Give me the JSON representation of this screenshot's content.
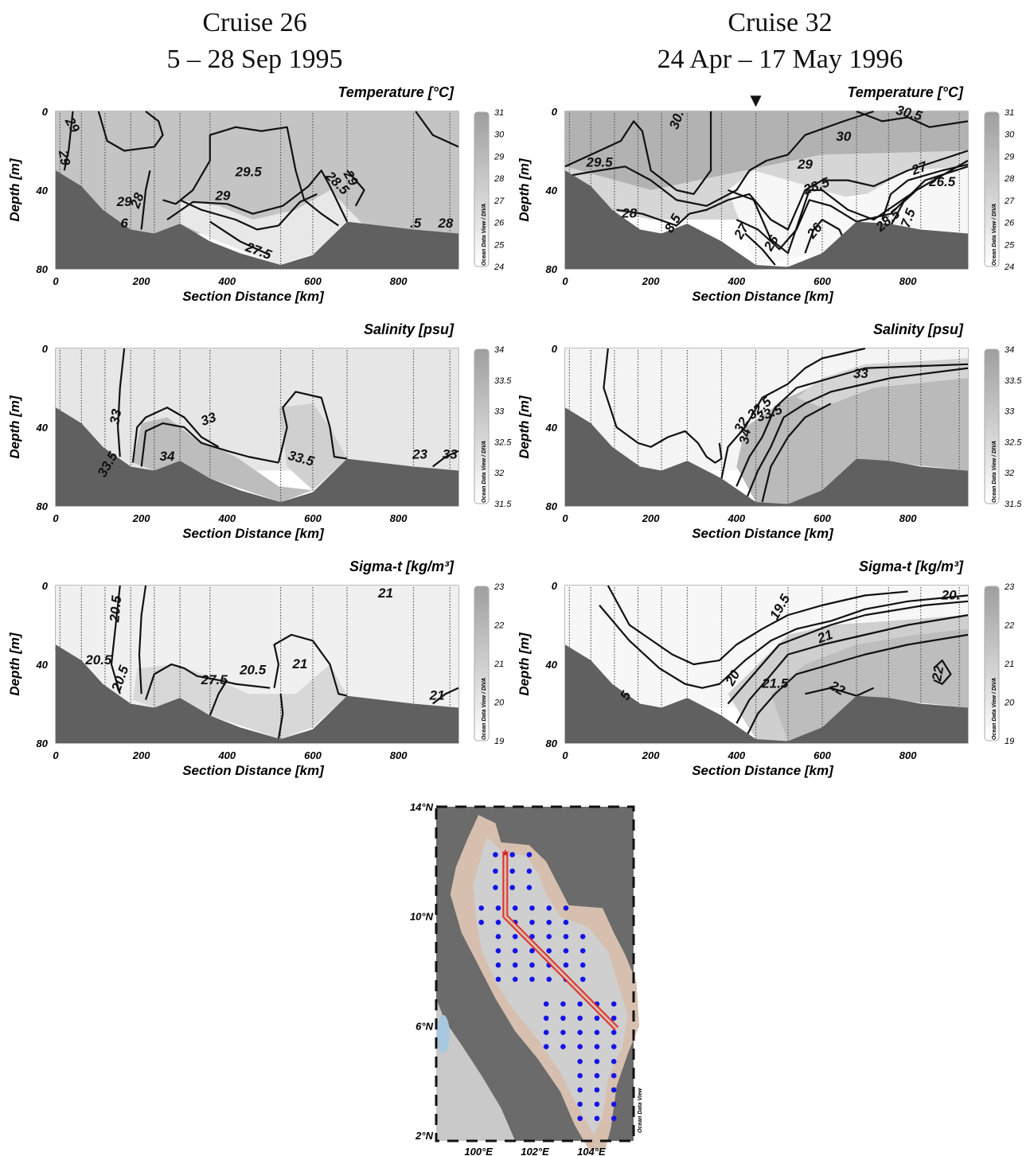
{
  "columns": [
    {
      "title": "Cruise 26",
      "dates": "5 – 28 Sep 1995"
    },
    {
      "title": "Cruise 32",
      "dates": "24 Apr – 17 May 1996"
    }
  ],
  "panels": {
    "temperature": {
      "title": "Temperature [°C]",
      "colorbar_ticks": [
        "31",
        "30",
        "29",
        "28",
        "27",
        "26",
        "25",
        "24"
      ]
    },
    "salinity": {
      "title": "Salinity [psu]",
      "colorbar_ticks": [
        "34",
        "33.5",
        "33",
        "32.5",
        "32",
        "31.5"
      ]
    },
    "sigma": {
      "title": "Sigma-t [kg/m³]",
      "colorbar_ticks": [
        "23",
        "22",
        "21",
        "20",
        "19"
      ]
    }
  },
  "axes": {
    "ylabel": "Depth [m]",
    "xlabel": "Section Distance [km]",
    "yticks": [
      "0",
      "40",
      "80"
    ],
    "xticks": [
      "0",
      "200",
      "400",
      "600",
      "800"
    ],
    "colorbar_source": "Ocean Data View / DIVA"
  },
  "contour_labels": {
    "c26_temp": [
      "29",
      "29",
      "29.5",
      "29",
      "28",
      "29",
      "28.5",
      "29",
      "27.5",
      ".5",
      "28",
      "6"
    ],
    "c32_temp": [
      "30.",
      "30.5",
      "30",
      "29.5",
      "29",
      "28.5",
      "27",
      "26.5",
      "28",
      "8.5",
      "26",
      "26",
      "7.5",
      "27",
      "28.5"
    ],
    "c26_sal": [
      "33",
      "33.5",
      "33",
      "34",
      "33.5",
      "33",
      "23"
    ],
    "c32_sal": [
      "33",
      "32.5",
      "32",
      "33.5",
      "34"
    ],
    "c26_sig": [
      "20.5",
      "20.5",
      "21",
      "20.5",
      "27.5",
      "20.5",
      "21",
      "21"
    ],
    "c32_sig": [
      "19.5",
      "20.",
      "21",
      "20",
      "21.5",
      "22",
      "22",
      "5"
    ]
  },
  "map": {
    "lat_labels": [
      "14°N",
      "10°N",
      "6°N",
      "2°N"
    ],
    "lon_labels": [
      "100°E",
      "102°E",
      "104°E"
    ],
    "source": "Ocean Data View",
    "colors": {
      "land": "#6b6b6b",
      "shelf": "#d6bfae",
      "water": "#cfcfcf",
      "stations": "#1414e6",
      "section": "#e02020"
    }
  },
  "marker": "▼",
  "chart_data": [
    {
      "type": "heatmap",
      "title": "Temperature [°C]",
      "cruise": "Cruise 26",
      "xlabel": "Section Distance [km]",
      "ylabel": "Depth [m]",
      "xlim": [
        0,
        940
      ],
      "ylim": [
        80,
        0
      ],
      "zlim": [
        24,
        31
      ],
      "station_x": [
        10,
        60,
        115,
        175,
        230,
        290,
        360,
        525,
        600,
        680,
        835,
        920
      ]
    },
    {
      "type": "heatmap",
      "title": "Temperature [°C]",
      "cruise": "Cruise 32",
      "xlabel": "Section Distance [km]",
      "ylabel": "Depth [m]",
      "xlim": [
        0,
        940
      ],
      "ylim": [
        80,
        0
      ],
      "zlim": [
        24,
        31
      ],
      "station_x": [
        10,
        60,
        115,
        170,
        225,
        285,
        365,
        445,
        520,
        600,
        680,
        755,
        830,
        920
      ]
    },
    {
      "type": "heatmap",
      "title": "Salinity [psu]",
      "cruise": "Cruise 26",
      "xlabel": "Section Distance [km]",
      "ylabel": "Depth [m]",
      "xlim": [
        0,
        940
      ],
      "ylim": [
        80,
        0
      ],
      "zlim": [
        31.5,
        34
      ],
      "station_x": [
        10,
        60,
        115,
        175,
        230,
        290,
        360,
        525,
        600,
        680,
        835,
        920
      ]
    },
    {
      "type": "heatmap",
      "title": "Salinity [psu]",
      "cruise": "Cruise 32",
      "xlabel": "Section Distance [km]",
      "ylabel": "Depth [m]",
      "xlim": [
        0,
        940
      ],
      "ylim": [
        80,
        0
      ],
      "zlim": [
        31.5,
        34
      ],
      "station_x": [
        10,
        60,
        115,
        170,
        225,
        285,
        365,
        445,
        520,
        600,
        680,
        755,
        830,
        920
      ]
    },
    {
      "type": "heatmap",
      "title": "Sigma-t [kg/m³]",
      "cruise": "Cruise 26",
      "xlabel": "Section Distance [km]",
      "ylabel": "Depth [m]",
      "xlim": [
        0,
        940
      ],
      "ylim": [
        80,
        0
      ],
      "zlim": [
        19,
        23
      ],
      "station_x": [
        10,
        60,
        115,
        175,
        230,
        290,
        360,
        525,
        600,
        680,
        835,
        920
      ]
    },
    {
      "type": "heatmap",
      "title": "Sigma-t [kg/m³]",
      "cruise": "Cruise 32",
      "xlabel": "Section Distance [km]",
      "ylabel": "Depth [m]",
      "xlim": [
        0,
        940
      ],
      "ylim": [
        80,
        0
      ],
      "zlim": [
        19,
        23
      ],
      "station_x": [
        10,
        60,
        115,
        170,
        225,
        285,
        365,
        445,
        520,
        600,
        680,
        755,
        830,
        920
      ]
    }
  ]
}
